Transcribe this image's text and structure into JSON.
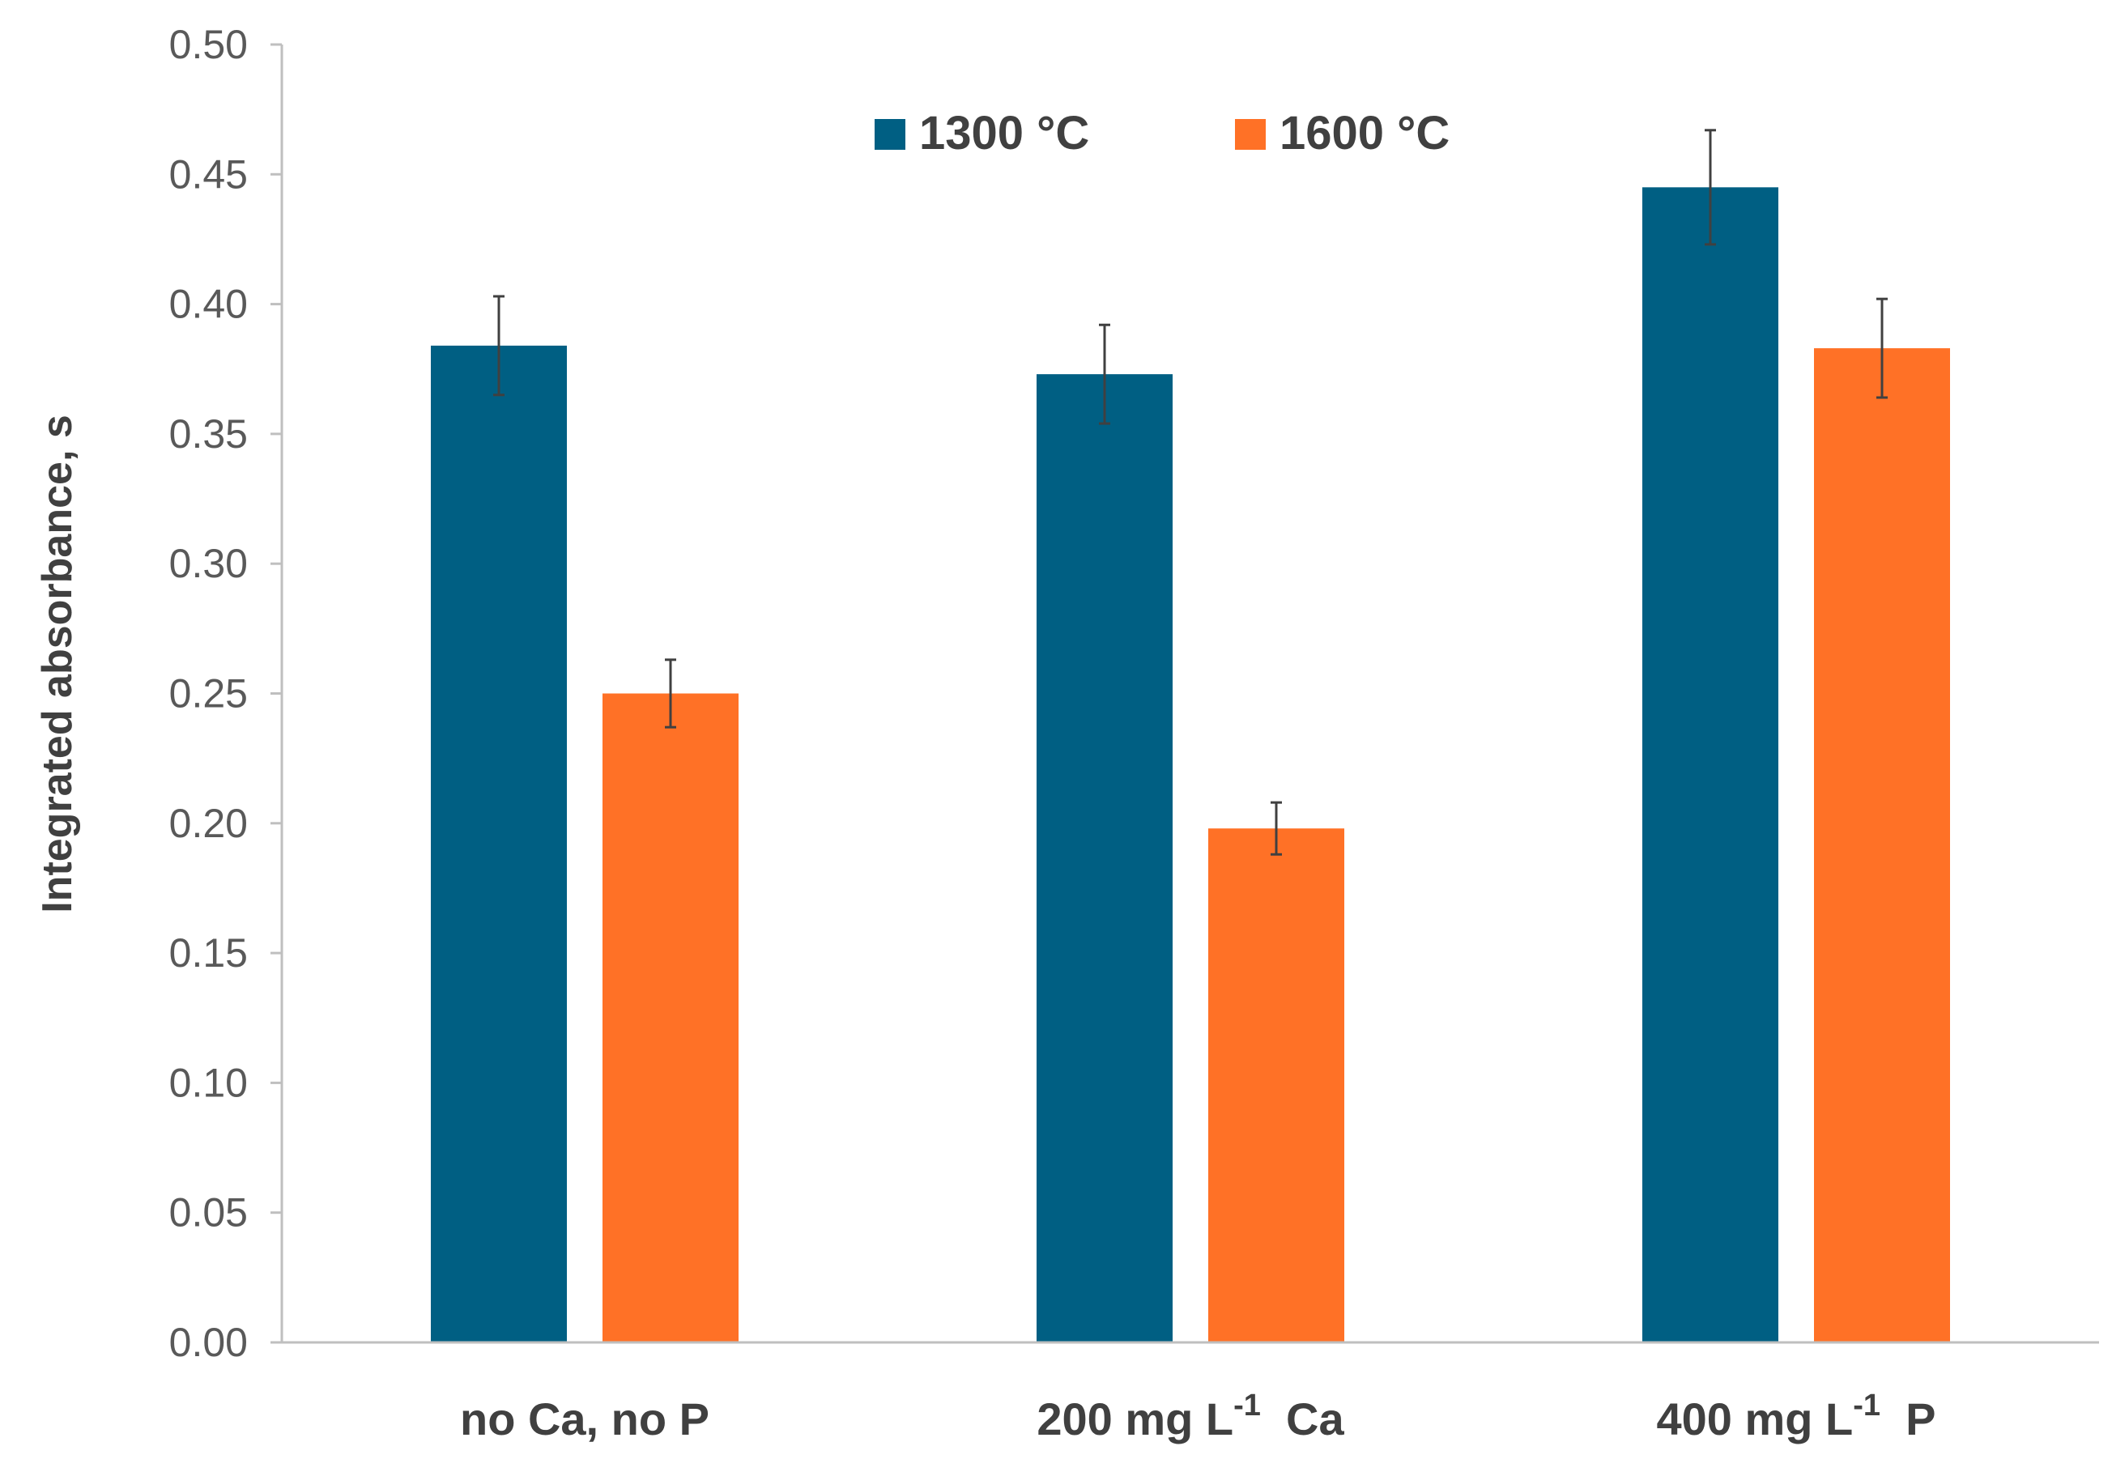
{
  "chart_data": {
    "type": "bar",
    "title": "",
    "xlabel": "",
    "ylabel": "Integrated absorbance, s",
    "ylim": [
      0,
      0.5
    ],
    "ytick_step": 0.05,
    "y_tick_labels": [
      "0.00",
      "0.05",
      "0.10",
      "0.15",
      "0.20",
      "0.25",
      "0.30",
      "0.35",
      "0.40",
      "0.45",
      "0.50"
    ],
    "categories": [
      {
        "main": "no Ca, no P",
        "sup": "",
        "tail": ""
      },
      {
        "main": "200 mg L",
        "sup": "-1",
        "tail": "Ca"
      },
      {
        "main": "400 mg L",
        "sup": "-1",
        "tail": "P"
      }
    ],
    "legend_position": "top-center",
    "series": [
      {
        "name": "1300 °C",
        "color": "#005F83",
        "values": [
          0.384,
          0.373,
          0.445
        ],
        "errors": [
          0.019,
          0.019,
          0.022
        ]
      },
      {
        "name": "1600 °C",
        "color": "#FF7126",
        "values": [
          0.25,
          0.198,
          0.383
        ],
        "errors": [
          0.013,
          0.01,
          0.019
        ]
      }
    ]
  }
}
